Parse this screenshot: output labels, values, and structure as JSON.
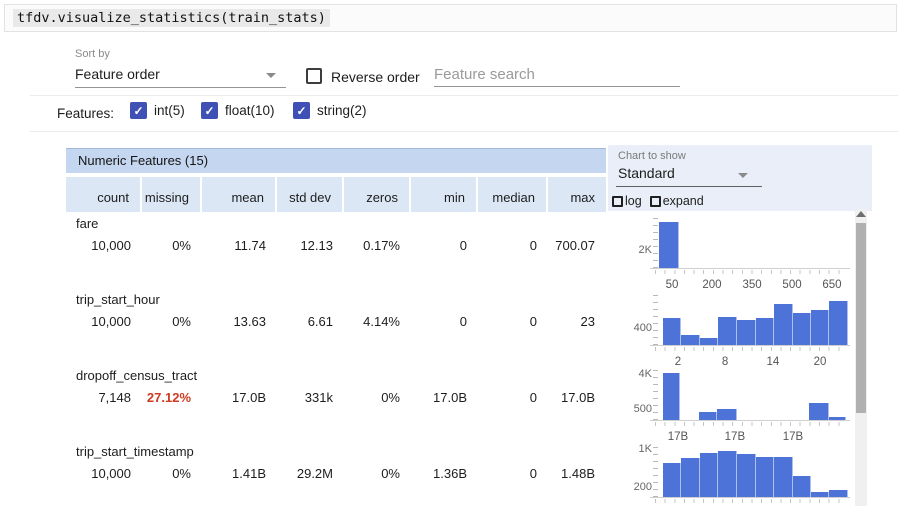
{
  "code_cell": {
    "text": "tfdv.visualize_statistics(train_stats)"
  },
  "controls": {
    "sort_by_label": "Sort by",
    "sort_by_value": "Feature order",
    "reverse_order_label": "Reverse order",
    "search_placeholder": "Feature search",
    "features_label": "Features:",
    "feature_types": [
      {
        "label": "int(5)",
        "checked": true
      },
      {
        "label": "float(10)",
        "checked": true
      },
      {
        "label": "string(2)",
        "checked": true
      }
    ]
  },
  "table": {
    "title": "Numeric Features (15)",
    "columns": [
      "count",
      "missing",
      "mean",
      "std dev",
      "zeros",
      "min",
      "median",
      "max"
    ],
    "rows": [
      {
        "name": "fare",
        "cells": [
          "10,000",
          "0%",
          "11.74",
          "12.13",
          "0.17%",
          "0",
          "0",
          "700.07"
        ],
        "alert_index": -1
      },
      {
        "name": "trip_start_hour",
        "cells": [
          "10,000",
          "0%",
          "13.63",
          "6.61",
          "4.14%",
          "0",
          "0",
          "23"
        ],
        "alert_index": -1
      },
      {
        "name": "dropoff_census_tract",
        "cells": [
          "7,148",
          "27.12%",
          "17.0B",
          "331k",
          "0%",
          "17.0B",
          "0",
          "17.0B"
        ],
        "alert_index": 1
      },
      {
        "name": "trip_start_timestamp",
        "cells": [
          "10,000",
          "0%",
          "1.41B",
          "29.2M",
          "0%",
          "1.36B",
          "0",
          "1.48B"
        ],
        "alert_index": -1
      }
    ]
  },
  "chart_panel": {
    "label": "Chart to show",
    "value": "Standard",
    "log_label": "log",
    "expand_label": "expand"
  },
  "chart_data": [
    {
      "type": "bar",
      "feature": "fare",
      "y_ticks": [
        {
          "label": "2K",
          "pos": 0.36
        }
      ],
      "x_ticks": [
        {
          "label": "50",
          "pos": 0.088
        },
        {
          "label": "200",
          "pos": 0.295
        },
        {
          "label": "350",
          "pos": 0.503
        },
        {
          "label": "500",
          "pos": 0.71
        },
        {
          "label": "650",
          "pos": 0.917
        }
      ],
      "bars": [
        {
          "x": 0.021,
          "w": 0.104,
          "h": 0.93
        }
      ]
    },
    {
      "type": "bar",
      "feature": "trip_start_hour",
      "y_ticks": [
        {
          "label": "400",
          "pos": 0.34
        }
      ],
      "x_ticks": [
        {
          "label": "2",
          "pos": 0.119
        },
        {
          "label": "8",
          "pos": 0.363
        },
        {
          "label": "14",
          "pos": 0.611
        },
        {
          "label": "20",
          "pos": 0.855
        }
      ],
      "bars": [
        {
          "x": 0.041,
          "w": 0.0959,
          "h": 0.55
        },
        {
          "x": 0.137,
          "w": 0.0959,
          "h": 0.21
        },
        {
          "x": 0.233,
          "w": 0.0959,
          "h": 0.14
        },
        {
          "x": 0.329,
          "w": 0.0959,
          "h": 0.57
        },
        {
          "x": 0.425,
          "w": 0.0959,
          "h": 0.5
        },
        {
          "x": 0.521,
          "w": 0.0959,
          "h": 0.55
        },
        {
          "x": 0.617,
          "w": 0.0959,
          "h": 0.82
        },
        {
          "x": 0.713,
          "w": 0.0959,
          "h": 0.64
        },
        {
          "x": 0.808,
          "w": 0.0959,
          "h": 0.71
        },
        {
          "x": 0.904,
          "w": 0.0959,
          "h": 0.88
        }
      ]
    },
    {
      "type": "bar",
      "feature": "dropoff_census_tract",
      "y_ticks": [
        {
          "label": "4K",
          "pos": 0.92
        },
        {
          "label": "500",
          "pos": 0.22
        }
      ],
      "x_ticks": [
        {
          "label": "17B",
          "pos": 0.119
        },
        {
          "label": "17B",
          "pos": 0.414
        },
        {
          "label": "17B",
          "pos": 0.715
        }
      ],
      "bars": [
        {
          "x": 0.041,
          "w": 0.088,
          "h": 0.95
        },
        {
          "x": 0.228,
          "w": 0.093,
          "h": 0.17
        },
        {
          "x": 0.321,
          "w": 0.104,
          "h": 0.22
        },
        {
          "x": 0.798,
          "w": 0.104,
          "h": 0.34
        },
        {
          "x": 0.902,
          "w": 0.088,
          "h": 0.07
        }
      ]
    },
    {
      "type": "bar",
      "feature": "trip_start_timestamp",
      "y_ticks": [
        {
          "label": "1K",
          "pos": 0.96
        },
        {
          "label": "200",
          "pos": 0.2
        }
      ],
      "x_ticks": [],
      "bars": [
        {
          "x": 0.041,
          "w": 0.0959,
          "h": 0.68
        },
        {
          "x": 0.137,
          "w": 0.0959,
          "h": 0.78
        },
        {
          "x": 0.233,
          "w": 0.0959,
          "h": 0.88
        },
        {
          "x": 0.329,
          "w": 0.0959,
          "h": 0.92
        },
        {
          "x": 0.425,
          "w": 0.0959,
          "h": 0.86
        },
        {
          "x": 0.521,
          "w": 0.0959,
          "h": 0.81
        },
        {
          "x": 0.617,
          "w": 0.0959,
          "h": 0.81
        },
        {
          "x": 0.713,
          "w": 0.0959,
          "h": 0.42
        },
        {
          "x": 0.808,
          "w": 0.0959,
          "h": 0.1
        },
        {
          "x": 0.904,
          "w": 0.0959,
          "h": 0.14
        }
      ]
    }
  ],
  "colors": {
    "accent_checkbox": "#3f51b5",
    "bar_blue": "#4d72d8",
    "table_title_bg": "#c5d6f0",
    "col_header_bg": "#dce7f6",
    "chart_panel_bg": "#e9eef8",
    "alert_red": "#cc3b22"
  }
}
